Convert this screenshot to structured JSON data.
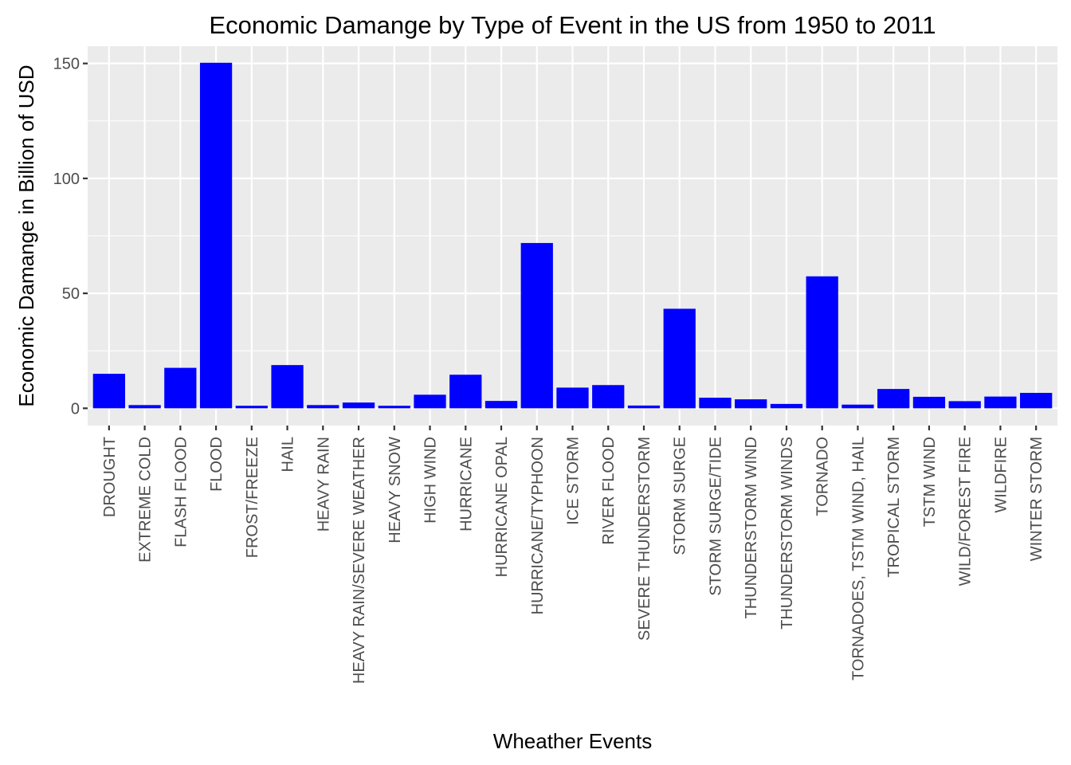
{
  "chart_data": {
    "type": "bar",
    "title": "Economic Damange by Type of Event in the US from 1950 to 2011",
    "xlabel": "Wheather Events",
    "ylabel": "Economic Damange in Billion of USD",
    "ylim": [
      -7.5,
      157.5
    ],
    "yticks": [
      0,
      50,
      100,
      150
    ],
    "grid": true,
    "legend": "none",
    "bar_color": "#0000ff",
    "panel_background": "#ebebeb",
    "grid_color": "#ffffff",
    "categories": [
      "DROUGHT",
      "EXTREME COLD",
      "FLASH FLOOD",
      "FLOOD",
      "FROST/FREEZE",
      "HAIL",
      "HEAVY RAIN",
      "HEAVY RAIN/SEVERE WEATHER",
      "HEAVY SNOW",
      "HIGH WIND",
      "HURRICANE",
      "HURRICANE OPAL",
      "HURRICANE/TYPHOON",
      "ICE STORM",
      "RIVER FLOOD",
      "SEVERE THUNDERSTORM",
      "STORM SURGE",
      "STORM SURGE/TIDE",
      "THUNDERSTORM WIND",
      "THUNDERSTORM WINDS",
      "TORNADO",
      "TORNADOES, TSTM WIND, HAIL",
      "TROPICAL STORM",
      "TSTM WIND",
      "WILD/FOREST FIRE",
      "WILDFIRE",
      "WINTER STORM"
    ],
    "values": [
      15.0,
      1.4,
      17.6,
      150.3,
      1.1,
      18.8,
      1.4,
      2.5,
      1.1,
      5.9,
      14.6,
      3.2,
      71.9,
      9.0,
      10.1,
      1.2,
      43.3,
      4.6,
      3.9,
      1.9,
      57.4,
      1.6,
      8.4,
      5.0,
      3.1,
      5.1,
      6.7
    ]
  }
}
